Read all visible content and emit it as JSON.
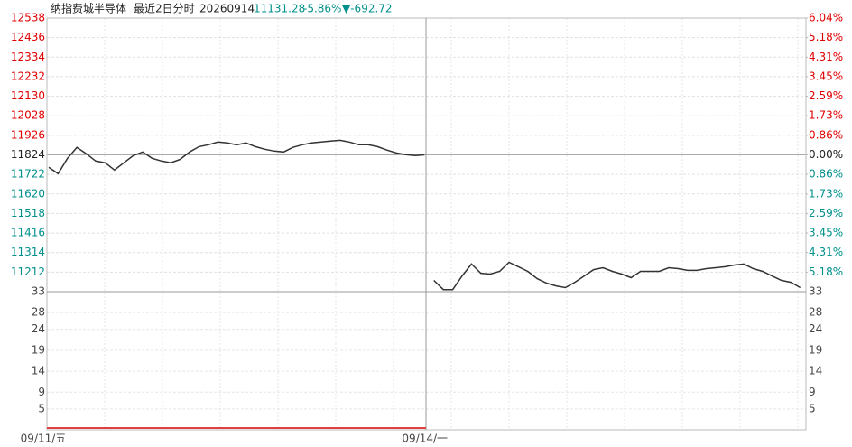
{
  "chart_data": {
    "type": "line",
    "title": "纳指费城半导体",
    "subtitle": "最近2日分时",
    "date": "20260914",
    "last_price": "11131.28",
    "change_pct": "-5.86%",
    "change": "▼-692.72",
    "categories": [
      "09/11/五",
      null,
      null,
      null,
      null,
      null,
      null,
      null,
      null,
      null,
      null,
      null,
      null,
      null,
      null,
      null,
      null,
      null,
      null,
      null,
      null,
      null,
      null,
      null,
      null,
      null,
      null,
      null,
      null,
      null,
      null,
      null,
      null,
      null,
      null,
      null,
      null,
      null,
      null,
      null,
      null,
      "09/14/一",
      null,
      null,
      null,
      null,
      null,
      null,
      null,
      null,
      null,
      null,
      null,
      null,
      null,
      null,
      null,
      null,
      null,
      null,
      null,
      null,
      null,
      null,
      null,
      null,
      null,
      null,
      null,
      null,
      null,
      null,
      null,
      null,
      null,
      null,
      null,
      null,
      null,
      null,
      null
    ],
    "series": [
      {
        "name": "纳指费城半导体",
        "color": "#333333",
        "values": [
          11759,
          11726,
          11806,
          11863,
          11830,
          11792,
          11783,
          11745,
          11783,
          11820,
          11839,
          11806,
          11792,
          11783,
          11801,
          11839,
          11867,
          11877,
          11891,
          11886,
          11877,
          11886,
          11867,
          11853,
          11844,
          11839,
          11863,
          11877,
          11886,
          11891,
          11896,
          11900,
          11891,
          11877,
          11877,
          11867,
          11849,
          11834,
          11825,
          11820,
          11824,
          11169,
          11121,
          11121,
          11192,
          11254,
          11206,
          11202,
          11216,
          11263,
          11240,
          11216,
          11178,
          11155,
          11140,
          11131,
          11159,
          11192,
          11225,
          11235,
          11216,
          11202,
          11183,
          11216,
          11216,
          11216,
          11235,
          11230,
          11221,
          11221,
          11230,
          11235,
          11240,
          11249,
          11254,
          11230,
          11216,
          11192,
          11169,
          11159,
          11131
        ]
      }
    ],
    "ylim": [
      11110,
      12538
    ],
    "yticks": [
      12538,
      12436,
      12334,
      12232,
      12130,
      12028,
      11926,
      11824,
      11722,
      11620,
      11518,
      11416,
      11314,
      11212
    ],
    "y2lim": [
      -6.04,
      6.04
    ],
    "y2ticks": [
      {
        "value": 6.04,
        "label": "6.04%"
      },
      {
        "value": 5.18,
        "label": "5.18%"
      },
      {
        "value": 4.31,
        "label": "4.31%"
      },
      {
        "value": 3.45,
        "label": "3.45%"
      },
      {
        "value": 2.59,
        "label": "2.59%"
      },
      {
        "value": 1.73,
        "label": "1.73%"
      },
      {
        "value": 0.86,
        "label": "0.86%"
      },
      {
        "value": 0,
        "label": "0.00%"
      },
      {
        "value": -0.86,
        "label": "0.86%"
      },
      {
        "value": -1.73,
        "label": "1.73%"
      },
      {
        "value": -2.59,
        "label": "2.59%"
      },
      {
        "value": -3.45,
        "label": "3.45%"
      },
      {
        "value": -4.31,
        "label": "4.31%"
      },
      {
        "value": -5.18,
        "label": "5.18%"
      }
    ],
    "volume_lim": [
      0,
      33
    ],
    "volume_ticks": [
      33,
      28,
      24,
      19,
      14,
      9,
      5
    ],
    "up_color": "#e00000",
    "down_color": "#00908c",
    "grid": true
  }
}
